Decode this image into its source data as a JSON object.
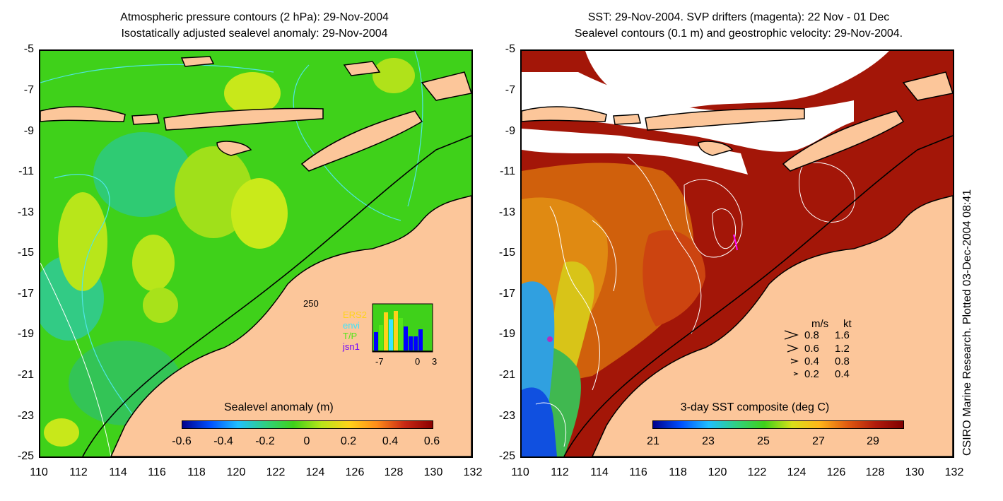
{
  "left_panel": {
    "title_line1": "Atmospheric pressure contours (2 hPa): 29-Nov-2004",
    "title_line2": "Isostatically adjusted sealevel anomaly: 29-Nov-2004",
    "colorbar_title": "Sealevel anomaly (m)",
    "colorbar_ticks": [
      "-0.6",
      "-0.4",
      "-0.2",
      "0",
      "0.2",
      "0.4",
      "0.6"
    ],
    "colors": {
      "sea": "#3fd11a",
      "land": "#fcc69a",
      "contour": "#4fe6e6"
    },
    "inset": {
      "ymax_label": "250",
      "legend": [
        {
          "label": "ERS2",
          "color": "#ffd21a"
        },
        {
          "label": "envi",
          "color": "#3be6ff"
        },
        {
          "label": "T/P",
          "color": "#54e61a"
        },
        {
          "label": "jsn1",
          "color": "#7000ff"
        }
      ],
      "x_ticks": [
        "-7",
        "0",
        "3"
      ]
    }
  },
  "right_panel": {
    "title_line1": "SST: 29-Nov-2004. SVP drifters (magenta): 22 Nov - 01 Dec",
    "title_line2": "Sealevel contours (0.1 m) and geostrophic velocity: 29-Nov-2004.",
    "colorbar_title": "3-day SST composite (deg C)",
    "colorbar_ticks": [
      "21",
      "23",
      "25",
      "27",
      "29"
    ],
    "velocity_legend": {
      "header_ms": "m/s",
      "header_kt": "kt",
      "rows": [
        {
          "ms": "0.8",
          "kt": "1.6"
        },
        {
          "ms": "0.6",
          "kt": "1.2"
        },
        {
          "ms": "0.4",
          "kt": "0.8"
        },
        {
          "ms": "0.2",
          "kt": "0.4"
        }
      ]
    },
    "credit": "CSIRO Marine Research. Plotted 03-Dec-2004 08:41"
  },
  "axes": {
    "y_ticks": [
      "-5",
      "-7",
      "-9",
      "-11",
      "-13",
      "-15",
      "-17",
      "-19",
      "-21",
      "-23",
      "-25"
    ],
    "x_ticks": [
      "110",
      "112",
      "114",
      "116",
      "118",
      "120",
      "122",
      "124",
      "126",
      "128",
      "130",
      "132"
    ]
  }
}
